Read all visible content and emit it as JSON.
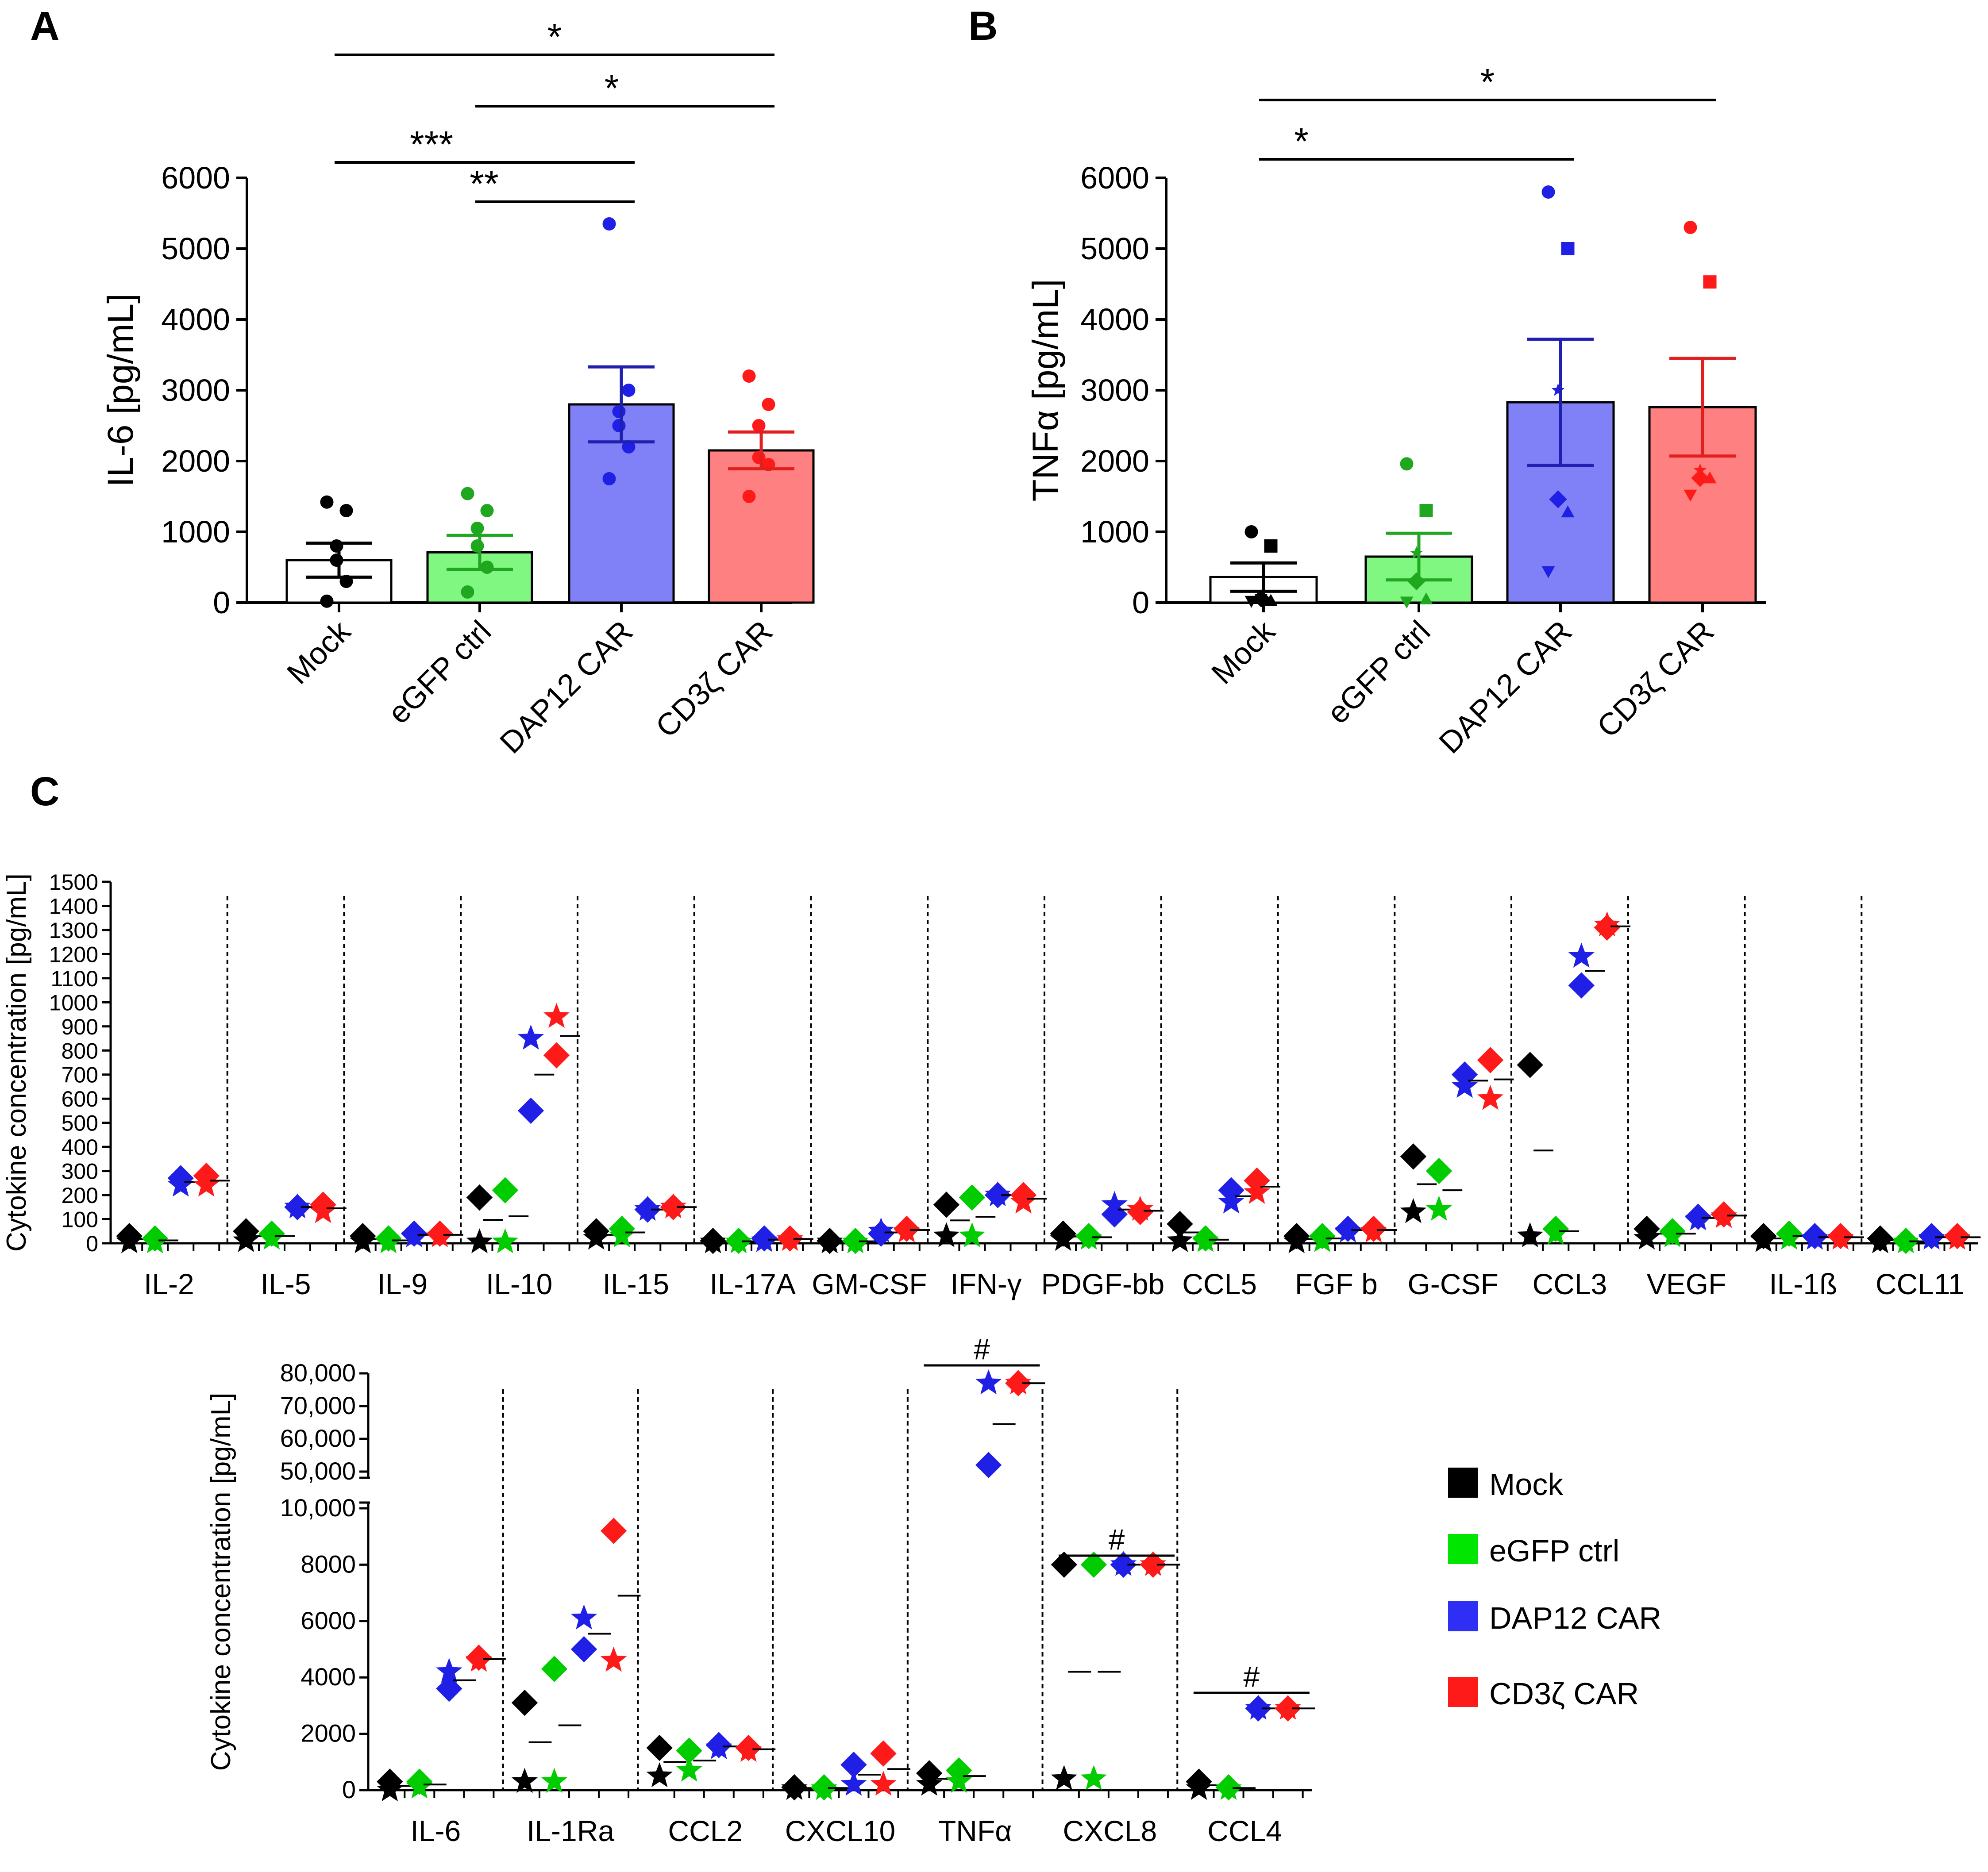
{
  "colors": {
    "mock": "#000000",
    "egfp": "#00cc00",
    "dap12": "#1f1fe6",
    "cd3z": "#ff1a1a",
    "fill_mock": "#ffffff",
    "fill_egfp": "#80f780",
    "fill_dap12": "#8080f7",
    "fill_cd3z": "#ff8080",
    "err_egfp": "#1fa81f",
    "err_dap12": "#1f1fb0",
    "err_cd3z": "#e01f1f"
  },
  "chart_data": [
    {
      "id": "A",
      "type": "bar",
      "panel_label": "A",
      "ylabel": "IL-6 [pg/mL]",
      "ylim": [
        0,
        6000
      ],
      "yticks": [
        "0",
        "1000",
        "2000",
        "3000",
        "4000",
        "5000",
        "6000"
      ],
      "categories": [
        "Mock",
        "eGFP ctrl",
        "DAP12 CAR",
        "CD3ζ CAR"
      ],
      "values": [
        600,
        710,
        2800,
        2150
      ],
      "sem": [
        240,
        240,
        530,
        260
      ],
      "points": [
        [
          1420,
          1300,
          800,
          600,
          300,
          20
        ],
        [
          1540,
          1300,
          1050,
          800,
          500,
          150
        ],
        [
          5350,
          3000,
          2700,
          2500,
          2200,
          1750
        ],
        [
          3200,
          2800,
          2500,
          2050,
          1950,
          1500
        ]
      ],
      "significance": [
        {
          "from": 0,
          "to": 3,
          "label": "*"
        },
        {
          "from": 1,
          "to": 3,
          "label": "*"
        },
        {
          "from": 0,
          "to": 2,
          "label": "***"
        },
        {
          "from": 1,
          "to": 2,
          "label": "**"
        }
      ]
    },
    {
      "id": "B",
      "type": "bar",
      "panel_label": "B",
      "ylabel": "TNFα [pg/mL]",
      "ylim": [
        0,
        6000
      ],
      "yticks": [
        "0",
        "1000",
        "2000",
        "3000",
        "4000",
        "5000",
        "6000"
      ],
      "categories": [
        "Mock",
        "eGFP ctrl",
        "DAP12 CAR",
        "CD3ζ CAR"
      ],
      "values": [
        360,
        650,
        2830,
        2760
      ],
      "sem": [
        200,
        330,
        890,
        690
      ],
      "points": [
        [
          1000,
          800,
          90,
          60,
          30,
          20
        ],
        [
          1960,
          1300,
          700,
          300,
          50,
          10
        ],
        [
          5800,
          5000,
          3000,
          1460,
          1280,
          440
        ],
        [
          5300,
          4530,
          1870,
          1760,
          1760,
          1520
        ]
      ],
      "point_shapes": [
        "circle",
        "square",
        "star",
        "diamond",
        "triangle",
        "tri-down"
      ],
      "significance": [
        {
          "from": 0,
          "to": 3,
          "label": "*"
        },
        {
          "from": 0,
          "to": 2,
          "label": "*"
        }
      ]
    },
    {
      "id": "C1",
      "type": "scatter",
      "panel_label": "C",
      "ylabel": "Cytokine concentration [pg/mL]",
      "ylim": [
        0,
        1500
      ],
      "yticks": [
        "0",
        "100",
        "200",
        "300",
        "400",
        "500",
        "600",
        "700",
        "800",
        "900",
        "1000",
        "1100",
        "1200",
        "1300",
        "1400",
        "1500"
      ],
      "categories": [
        "IL-2",
        "IL-5",
        "IL-9",
        "IL-10",
        "IL-15",
        "IL-17A",
        "GM-CSF",
        "IFN-γ",
        "PDGF-bb",
        "CCL5",
        "FGF b",
        "G-CSF",
        "CCL3",
        "VEGF",
        "IL-1ß",
        "CCL11"
      ],
      "series": [
        {
          "name": "Mock",
          "diamond": [
            30,
            50,
            30,
            190,
            50,
            10,
            10,
            160,
            40,
            80,
            30,
            360,
            740,
            60,
            30,
            20
          ],
          "star": [
            5,
            10,
            5,
            5,
            20,
            5,
            5,
            30,
            15,
            10,
            5,
            130,
            30,
            20,
            10,
            5
          ],
          "mean": [
            17,
            30,
            17,
            97,
            35,
            8,
            8,
            95,
            28,
            45,
            17,
            245,
            385,
            40,
            20,
            13
          ]
        },
        {
          "name": "eGFP ctrl",
          "diamond": [
            20,
            40,
            20,
            220,
            60,
            10,
            10,
            190,
            30,
            20,
            30,
            300,
            60,
            50,
            40,
            10
          ],
          "star": [
            5,
            20,
            5,
            5,
            30,
            5,
            5,
            30,
            20,
            10,
            10,
            140,
            40,
            30,
            20,
            5
          ],
          "mean": [
            12,
            30,
            12,
            112,
            45,
            8,
            8,
            110,
            25,
            15,
            20,
            220,
            50,
            40,
            30,
            8
          ]
        },
        {
          "name": "DAP12 CAR",
          "diamond": [
            270,
            150,
            40,
            550,
            140,
            20,
            40,
            200,
            120,
            220,
            60,
            700,
            1070,
            110,
            30,
            30
          ],
          "star": [
            240,
            150,
            30,
            850,
            140,
            10,
            50,
            200,
            160,
            170,
            50,
            650,
            1190,
            100,
            20,
            20
          ],
          "mean": [
            255,
            150,
            35,
            700,
            140,
            15,
            45,
            200,
            140,
            195,
            55,
            675,
            1130,
            105,
            25,
            25
          ]
        },
        {
          "name": "CD3ζ CAR",
          "diamond": [
            280,
            160,
            40,
            780,
            150,
            20,
            60,
            200,
            130,
            260,
            60,
            760,
            1310,
            120,
            30,
            30
          ],
          "star": [
            240,
            130,
            30,
            940,
            150,
            15,
            50,
            170,
            140,
            210,
            50,
            600,
            1320,
            110,
            20,
            20
          ],
          "mean": [
            260,
            145,
            35,
            860,
            150,
            18,
            55,
            185,
            135,
            235,
            55,
            680,
            1315,
            115,
            25,
            25
          ]
        }
      ]
    },
    {
      "id": "C2",
      "type": "scatter",
      "ylabel": "Cytokine concentration [pg/mL]",
      "ylim": [
        0,
        80000
      ],
      "axis_break": [
        10000,
        50000
      ],
      "yticks": [
        "0",
        "2000",
        "4000",
        "6000",
        "8000",
        "10,000",
        "50,000",
        "60,000",
        "70,000",
        "80,000"
      ],
      "categories": [
        "IL-6",
        "IL-1Ra",
        "CCL2",
        "CXCL10",
        "TNFα",
        "CXCL8",
        "CCL4"
      ],
      "series": [
        {
          "name": "Mock",
          "diamond": [
            300,
            3100,
            1500,
            100,
            600,
            8000,
            300
          ],
          "star": [
            0,
            300,
            500,
            50,
            200,
            400,
            50
          ],
          "mean": [
            150,
            1700,
            1000,
            75,
            400,
            4200,
            175
          ]
        },
        {
          "name": "eGFP ctrl",
          "diamond": [
            300,
            4300,
            1400,
            100,
            700,
            8000,
            100
          ],
          "star": [
            100,
            300,
            700,
            50,
            300,
            400,
            50
          ],
          "mean": [
            200,
            2300,
            1050,
            75,
            500,
            4200,
            75
          ]
        },
        {
          "name": "DAP12 CAR",
          "diamond": [
            3600,
            5000,
            1600,
            900,
            52000,
            8000,
            2900
          ],
          "star": [
            4200,
            6100,
            1500,
            200,
            77000,
            8000,
            2900
          ],
          "mean": [
            3900,
            5550,
            1550,
            550,
            64500,
            8000,
            2900
          ]
        },
        {
          "name": "CD3ζ CAR",
          "diamond": [
            4700,
            9200,
            1500,
            1300,
            77000,
            8000,
            2900
          ],
          "star": [
            4600,
            4600,
            1400,
            200,
            77000,
            8000,
            2900
          ],
          "mean": [
            4650,
            6900,
            1450,
            750,
            77000,
            8000,
            2900
          ]
        }
      ],
      "hash_marks": [
        {
          "from": 4,
          "to": 4,
          "label": "#"
        },
        {
          "from": 5,
          "to": 5,
          "label": "#"
        },
        {
          "from": 6,
          "to": 6,
          "label": "#"
        }
      ]
    }
  ],
  "legend": [
    {
      "label": "Mock",
      "color": "#000000"
    },
    {
      "label": "eGFP ctrl",
      "color": "#00e600"
    },
    {
      "label": "DAP12 CAR",
      "color": "#2e2ef5"
    },
    {
      "label": "CD3ζ CAR",
      "color": "#ff1a1a"
    }
  ]
}
